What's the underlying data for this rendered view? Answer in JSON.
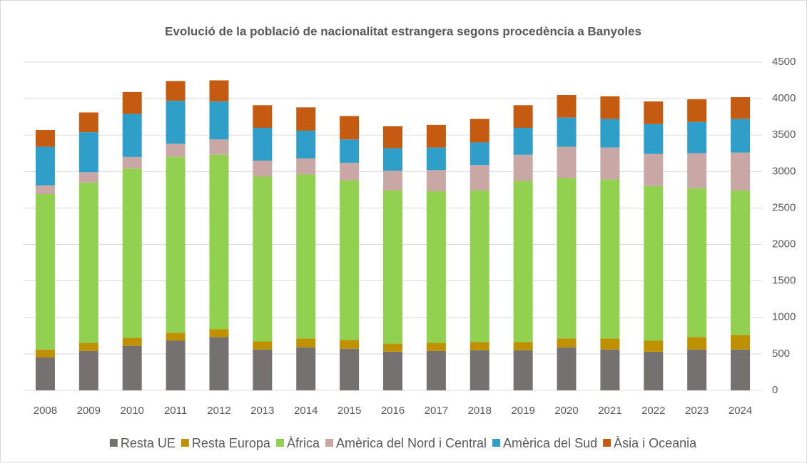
{
  "chart_data": {
    "type": "stacked_bar",
    "title": "Evolució de la població de nacionalitat estrangera segons procedència a Banyoles",
    "categories": [
      "2008",
      "2009",
      "2010",
      "2011",
      "2012",
      "2013",
      "2014",
      "2015",
      "2016",
      "2017",
      "2018",
      "2019",
      "2020",
      "2021",
      "2022",
      "2023",
      "2024"
    ],
    "series": [
      {
        "name": "Resta UE",
        "color": "#767171",
        "values": [
          450,
          540,
          610,
          680,
          730,
          560,
          590,
          570,
          530,
          540,
          550,
          550,
          590,
          560,
          530,
          560,
          560
        ]
      },
      {
        "name": "Resta Europa",
        "color": "#bf9000",
        "values": [
          110,
          110,
          110,
          110,
          110,
          110,
          120,
          120,
          110,
          110,
          110,
          110,
          120,
          150,
          150,
          170,
          200
        ]
      },
      {
        "name": "Àfrica",
        "color": "#92d050",
        "values": [
          2130,
          2200,
          2320,
          2410,
          2390,
          2260,
          2250,
          2190,
          2100,
          2080,
          2080,
          2210,
          2200,
          2180,
          2120,
          2040,
          1980
        ]
      },
      {
        "name": "Amèrica del Nord i Central",
        "color": "#c9a7a5",
        "values": [
          120,
          140,
          160,
          180,
          210,
          220,
          220,
          240,
          270,
          290,
          350,
          360,
          430,
          440,
          440,
          480,
          520
        ]
      },
      {
        "name": "Amèrica del Sud",
        "color": "#2f9fc9",
        "values": [
          530,
          550,
          590,
          590,
          520,
          450,
          380,
          320,
          310,
          310,
          310,
          370,
          400,
          390,
          410,
          430,
          460
        ]
      },
      {
        "name": "Àsia i Oceania",
        "color": "#c55a11",
        "values": [
          230,
          270,
          300,
          270,
          290,
          310,
          320,
          320,
          300,
          310,
          320,
          310,
          310,
          310,
          310,
          310,
          300
        ]
      }
    ],
    "ylim": [
      0,
      4500
    ],
    "yticks": [
      0,
      500,
      1000,
      1500,
      2000,
      2500,
      3000,
      3500,
      4000,
      4500
    ],
    "grid": true,
    "y_axis_side": "right",
    "legend": "bottom"
  }
}
